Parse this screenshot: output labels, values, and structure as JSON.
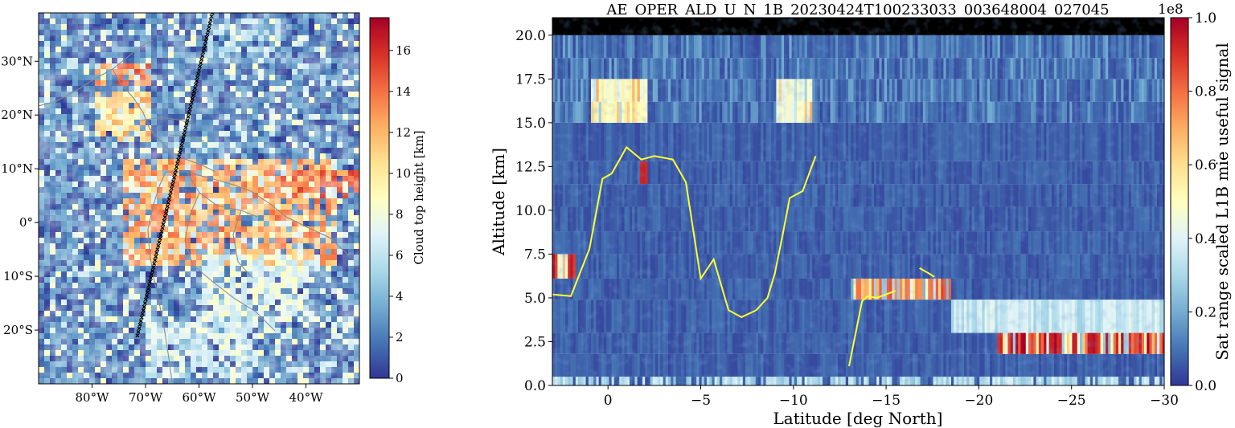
{
  "colors": {
    "colormap": [
      "#313695",
      "#4575b4",
      "#74add1",
      "#abd9e9",
      "#e0f3f8",
      "#ffffbf",
      "#fee090",
      "#fdae61",
      "#f46d43",
      "#d73027",
      "#a50026"
    ],
    "coastline": "#8c8c8c",
    "track_marker": "#000000",
    "overlay_line": "#ffff33",
    "no_data_band": "#000000"
  },
  "chart_data": [
    {
      "type": "heatmap",
      "title": "",
      "xlabel": "",
      "ylabel": "",
      "x_tick_labels": [
        "80°W",
        "70°W",
        "60°W",
        "50°W",
        "40°W"
      ],
      "x_tick_values": [
        -80,
        -70,
        -60,
        -50,
        -40
      ],
      "y_tick_labels": [
        "30°N",
        "20°N",
        "10°N",
        "0°",
        "10°S",
        "20°S"
      ],
      "y_tick_values": [
        30,
        20,
        10,
        0,
        -10,
        -20
      ],
      "xlim": [
        -90,
        -30
      ],
      "ylim": [
        -30,
        39
      ],
      "colorbar": {
        "label": "Cloud top height [km]",
        "tick_labels": [
          "0",
          "2",
          "4",
          "6",
          "8",
          "10",
          "12",
          "14",
          "16"
        ],
        "tick_values": [
          0,
          2,
          4,
          6,
          8,
          10,
          12,
          14,
          16
        ],
        "range": [
          0,
          17.6
        ]
      },
      "regions_km": [
        {
          "lon": [
            -90,
            -30
          ],
          "lat": [
            -30,
            39
          ],
          "height": 2.0
        },
        {
          "lon": [
            -75,
            -35
          ],
          "lat": [
            -8,
            12
          ],
          "height": 12.5
        },
        {
          "lon": [
            -80,
            -70
          ],
          "lat": [
            15,
            25
          ],
          "height": 11.0
        },
        {
          "lon": [
            -80,
            -70
          ],
          "lat": [
            26,
            30
          ],
          "height": 13.5
        },
        {
          "lon": [
            -45,
            -30
          ],
          "lat": [
            5,
            10
          ],
          "height": 14.0
        },
        {
          "lon": [
            -60,
            -40
          ],
          "lat": [
            -18,
            -5
          ],
          "height": 7.0
        },
        {
          "lon": [
            -70,
            -50
          ],
          "lat": [
            -28,
            -18
          ],
          "height": 6.0
        },
        {
          "lon": [
            -60,
            -45
          ],
          "lat": [
            30,
            38
          ],
          "height": 4.5
        }
      ],
      "satellite_track": {
        "start": [
          -71.5,
          -21.0
        ],
        "end": [
          -57.5,
          39.0
        ]
      }
    },
    {
      "type": "heatmap",
      "title": "AE_OPER_ALD_U_N_1B_20230424T100233033_003648004_027045",
      "xlabel": "Latitude [deg North]",
      "ylabel": "Altitude [km]",
      "x_tick_labels": [
        "0",
        "−5",
        "−10",
        "−15",
        "−20",
        "−25",
        "−30"
      ],
      "x_tick_values": [
        0,
        -5,
        -10,
        -15,
        -20,
        -25,
        -30
      ],
      "y_tick_labels": [
        "0.0",
        "2.5",
        "5.0",
        "7.5",
        "10.0",
        "12.5",
        "15.0",
        "17.5",
        "20.0"
      ],
      "y_tick_values": [
        0,
        2.5,
        5,
        7.5,
        10,
        12.5,
        15,
        17.5,
        20
      ],
      "xlim": [
        3,
        -30
      ],
      "ylim": [
        0,
        21
      ],
      "colorbar": {
        "label": "Sat range scaled L1B mie useful signal",
        "tick_labels": [
          "0.0",
          "0.2",
          "0.4",
          "0.6",
          "0.8",
          "1.0"
        ],
        "tick_values": [
          0,
          0.2,
          0.4,
          0.6,
          0.8,
          1.0
        ],
        "offset_label": "1e8",
        "range": [
          0,
          1.0
        ]
      },
      "range_bins_km": [
        0,
        0.5,
        1.8,
        3.0,
        4.9,
        6.1,
        7.5,
        8.8,
        10.2,
        11.5,
        12.8,
        15.0,
        16.2,
        17.5,
        18.7,
        20.0,
        21.0
      ],
      "strong_signal_regions": [
        {
          "lat": [
            -21,
            -30
          ],
          "alt": [
            1.8,
            3.0
          ],
          "value": 0.98
        },
        {
          "lat": [
            -13,
            -18.5
          ],
          "alt": [
            4.9,
            6.1
          ],
          "value": 0.85
        },
        {
          "lat": [
            3,
            1.8
          ],
          "alt": [
            6.0,
            6.8
          ],
          "value": 0.95
        },
        {
          "lat": [
            -1.6,
            -2.0
          ],
          "alt": [
            11.5,
            12.8
          ],
          "value": 0.9
        },
        {
          "lat": [
            1,
            -2
          ],
          "alt": [
            15.0,
            17.5
          ],
          "value": 0.55
        },
        {
          "lat": [
            -9,
            -11
          ],
          "alt": [
            15.0,
            17.5
          ],
          "value": 0.5
        }
      ],
      "no_data_band": {
        "alt": [
          20.0,
          21.0
        ]
      },
      "overlay_line": {
        "x": [
          3.0,
          2.0,
          1.0,
          0.3,
          -0.2,
          -1.0,
          -1.8,
          -2.5,
          -3.5,
          -4.2,
          -5.0,
          -5.7,
          -6.5,
          -7.2,
          -8.0,
          -8.6,
          -9.0,
          -9.4,
          -9.8,
          -10.5,
          -11.2
        ],
        "y": [
          5.2,
          5.1,
          7.8,
          11.8,
          12.1,
          13.6,
          12.9,
          13.1,
          12.9,
          11.6,
          6.1,
          7.2,
          4.3,
          3.9,
          4.3,
          5.0,
          6.4,
          8.5,
          10.7,
          11.1,
          13.1
        ]
      },
      "overlay_line_2": {
        "x": [
          -13.0,
          -13.7,
          -14.0,
          -14.5,
          -15.0,
          -15.5
        ],
        "y": [
          1.1,
          4.8,
          5.1,
          5.0,
          5.2,
          5.4
        ]
      },
      "overlay_line_3": {
        "x": [
          -16.8,
          -17.3,
          -17.6
        ],
        "y": [
          6.7,
          6.4,
          6.2
        ]
      }
    }
  ]
}
